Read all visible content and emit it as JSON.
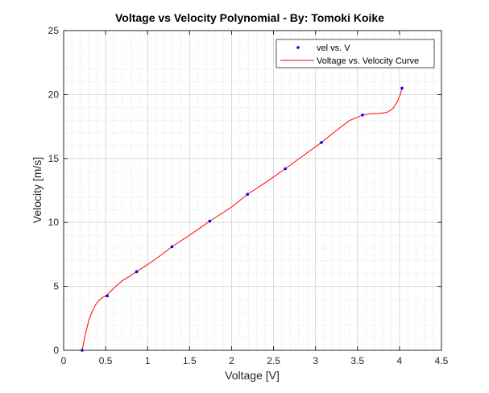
{
  "chart_data": {
    "type": "line",
    "title": "Voltage vs Velocity Polynomial - By: Tomoki Koike",
    "xlabel": "Voltage [V]",
    "ylabel": "Velocity [m/s]",
    "xlim": [
      0,
      4.5
    ],
    "ylim": [
      0,
      25
    ],
    "xticks": [
      0,
      0.5,
      1,
      1.5,
      2,
      2.5,
      3,
      3.5,
      4,
      4.5
    ],
    "xtick_labels": [
      "0",
      "0.5",
      "1",
      "1.5",
      "2",
      "2.5",
      "3",
      "3.5",
      "4",
      "4.5"
    ],
    "yticks": [
      0,
      5,
      10,
      15,
      20,
      25
    ],
    "ytick_labels": [
      "0",
      "5",
      "10",
      "15",
      "20",
      "25"
    ],
    "grid": true,
    "minor_grid": true,
    "legend_position": "top-right",
    "series": [
      {
        "name": "vel vs. V",
        "kind": "markers",
        "color": "#0000ff",
        "x": [
          0.22,
          0.52,
          0.87,
          1.29,
          1.74,
          2.19,
          2.64,
          3.07,
          3.56,
          4.03
        ],
        "y": [
          0.0,
          4.25,
          6.15,
          8.1,
          10.1,
          12.2,
          14.2,
          16.25,
          18.4,
          20.5
        ]
      },
      {
        "name": "Voltage vs. Velocity Curve",
        "kind": "line",
        "color": "#ff0000",
        "x": [
          0.22,
          0.26,
          0.3,
          0.34,
          0.38,
          0.42,
          0.46,
          0.5,
          0.55,
          0.62,
          0.7,
          0.8,
          0.87,
          1.0,
          1.15,
          1.29,
          1.5,
          1.74,
          2.0,
          2.19,
          2.4,
          2.64,
          2.85,
          3.07,
          3.25,
          3.4,
          3.56,
          3.65,
          3.75,
          3.85,
          3.92,
          3.97,
          4.01,
          4.03
        ],
        "y": [
          0.0,
          1.3,
          2.35,
          3.05,
          3.55,
          3.9,
          4.12,
          4.25,
          4.55,
          5.0,
          5.45,
          5.85,
          6.15,
          6.7,
          7.4,
          8.1,
          9.0,
          10.1,
          11.2,
          12.2,
          13.1,
          14.2,
          15.2,
          16.25,
          17.2,
          17.95,
          18.4,
          18.5,
          18.52,
          18.6,
          18.9,
          19.4,
          20.0,
          20.5
        ]
      }
    ]
  }
}
